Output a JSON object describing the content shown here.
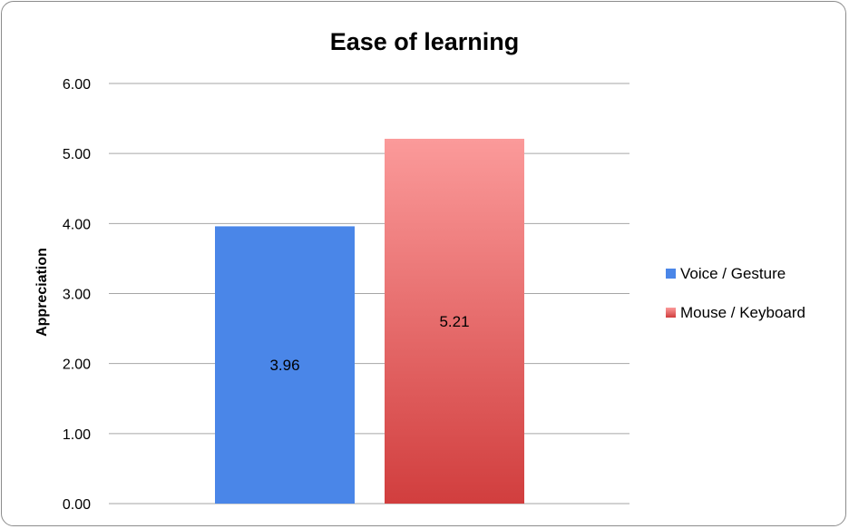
{
  "chart_data": {
    "type": "bar",
    "title": "Ease of learning",
    "xlabel": "",
    "ylabel": "Appreciation",
    "ylim": [
      0,
      6
    ],
    "yticks": [
      "0.00",
      "1.00",
      "2.00",
      "3.00",
      "4.00",
      "5.00",
      "6.00"
    ],
    "grid": true,
    "legend_position": "right",
    "series": [
      {
        "name": "Voice / Gesture",
        "values": [
          3.96
        ],
        "label": "3.96",
        "color": "#4a86e8"
      },
      {
        "name": "Mouse / Keyboard",
        "values": [
          5.21
        ],
        "label": "5.21",
        "color": "#e06666"
      }
    ]
  }
}
